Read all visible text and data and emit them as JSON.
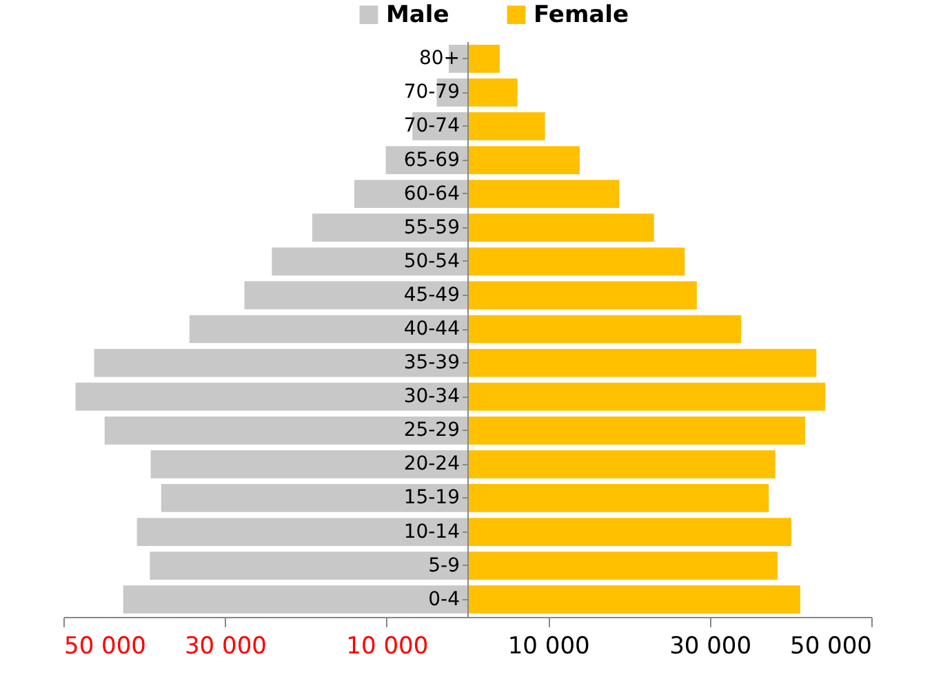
{
  "chart_data": {
    "type": "bar",
    "orientation": "horizontal",
    "stacked": true,
    "categories": [
      "80+",
      "70-79",
      "70-74",
      "65-69",
      "60-64",
      "55-59",
      "50-54",
      "45-49",
      "40-44",
      "35-39",
      "30-34",
      "25-29",
      "20-24",
      "15-19",
      "10-14",
      "5-9",
      "0-4"
    ],
    "series": [
      {
        "name": "Male",
        "color": "#c8c8c8",
        "values": [
          -2300,
          -3800,
          -6800,
          -10100,
          -14000,
          -19200,
          -24200,
          -27600,
          -34400,
          -46200,
          -48500,
          -44900,
          -39200,
          -37900,
          -40900,
          -39300,
          -42600
        ]
      },
      {
        "name": "Female",
        "color": "#ffc000",
        "values": [
          4000,
          6200,
          9600,
          13900,
          18800,
          23100,
          26900,
          28400,
          33900,
          43200,
          44300,
          41800,
          38100,
          37300,
          40100,
          38400,
          41200
        ]
      }
    ],
    "xlim": [
      -50000,
      50000
    ],
    "xticks": [
      {
        "value": -50000,
        "label": "50 000"
      },
      {
        "value": -30000,
        "label": "30 000"
      },
      {
        "value": -10000,
        "label": "10 000"
      },
      {
        "value": 10000,
        "label": "10 000"
      },
      {
        "value": 30000,
        "label": "30 000"
      },
      {
        "value": 50000,
        "label": "50 000"
      }
    ],
    "legend": "top",
    "grid": false
  }
}
